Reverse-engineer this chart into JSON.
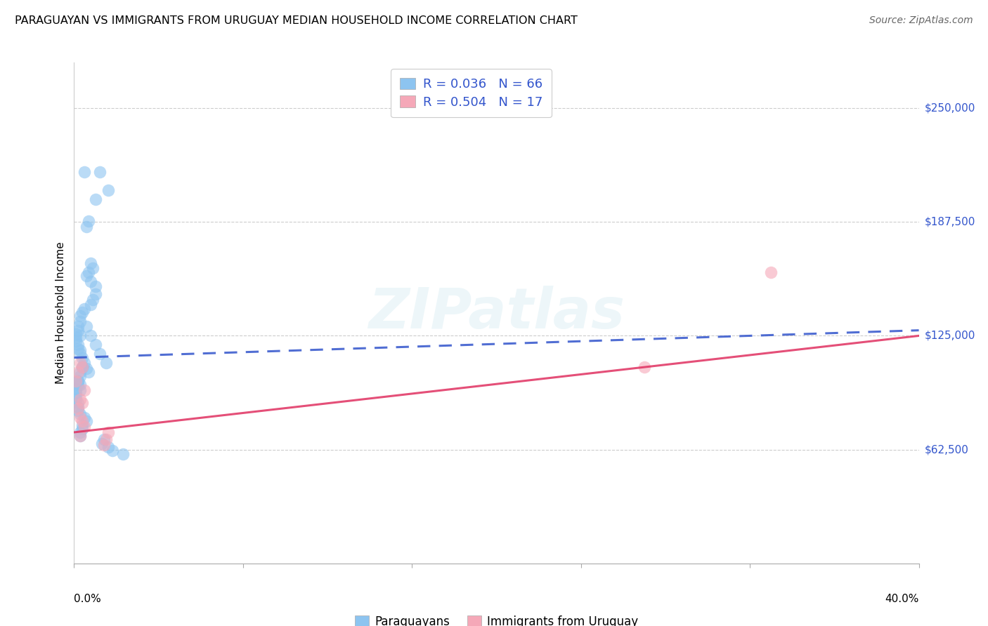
{
  "title": "PARAGUAYAN VS IMMIGRANTS FROM URUGUAY MEDIAN HOUSEHOLD INCOME CORRELATION CHART",
  "source": "Source: ZipAtlas.com",
  "ylabel": "Median Household Income",
  "y_ticks": [
    62500,
    125000,
    187500,
    250000
  ],
  "y_tick_labels": [
    "$62,500",
    "$125,000",
    "$187,500",
    "$250,000"
  ],
  "x_min": 0.0,
  "x_max": 0.4,
  "y_min": 0,
  "y_max": 275000,
  "blue_R": "0.036",
  "blue_N": "66",
  "pink_R": "0.504",
  "pink_N": "17",
  "legend_label_blue": "Paraguayans",
  "legend_label_pink": "Immigrants from Uruguay",
  "blue_color": "#8DC4F0",
  "pink_color": "#F5A8B8",
  "blue_line_color": "#3355CC",
  "pink_line_color": "#E03060",
  "watermark": "ZIPatlas",
  "blue_x": [
    0.005,
    0.012,
    0.01,
    0.016,
    0.006,
    0.007,
    0.008,
    0.009,
    0.006,
    0.007,
    0.008,
    0.01,
    0.01,
    0.009,
    0.008,
    0.005,
    0.004,
    0.003,
    0.003,
    0.002,
    0.002,
    0.001,
    0.001,
    0.001,
    0.002,
    0.002,
    0.003,
    0.003,
    0.004,
    0.005,
    0.004,
    0.006,
    0.007,
    0.003,
    0.002,
    0.002,
    0.001,
    0.001,
    0.001,
    0.001,
    0.002,
    0.002,
    0.002,
    0.003,
    0.005,
    0.006,
    0.004,
    0.004,
    0.003,
    0.003,
    0.014,
    0.013,
    0.016,
    0.018,
    0.023,
    0.002,
    0.003,
    0.004,
    0.003,
    0.003,
    0.003,
    0.015,
    0.012,
    0.01,
    0.008,
    0.006
  ],
  "blue_y": [
    215000,
    215000,
    200000,
    205000,
    185000,
    188000,
    165000,
    162000,
    158000,
    160000,
    155000,
    152000,
    148000,
    145000,
    142000,
    140000,
    138000,
    136000,
    133000,
    130000,
    128000,
    126000,
    124000,
    122000,
    120000,
    118000,
    117000,
    115000,
    113000,
    110000,
    108000,
    107000,
    105000,
    103000,
    100000,
    98000,
    96000,
    94000,
    92000,
    90000,
    88000,
    86000,
    84000,
    82000,
    80000,
    78000,
    76000,
    74000,
    72000,
    70000,
    68000,
    66000,
    64000,
    62000,
    60000,
    100000,
    105000,
    108000,
    98000,
    95000,
    125000,
    110000,
    115000,
    120000,
    125000,
    130000
  ],
  "pink_x": [
    0.001,
    0.002,
    0.003,
    0.004,
    0.005,
    0.003,
    0.004,
    0.002,
    0.003,
    0.004,
    0.005,
    0.003,
    0.014,
    0.015,
    0.016,
    0.27,
    0.33
  ],
  "pink_y": [
    100000,
    105000,
    110000,
    108000,
    95000,
    90000,
    88000,
    85000,
    80000,
    78000,
    75000,
    70000,
    65000,
    68000,
    72000,
    108000,
    160000
  ],
  "blue_trend_x": [
    0.0,
    0.4
  ],
  "blue_trend_y": [
    113000,
    128000
  ],
  "pink_trend_x": [
    0.0,
    0.4
  ],
  "pink_trend_y": [
    72000,
    125000
  ]
}
